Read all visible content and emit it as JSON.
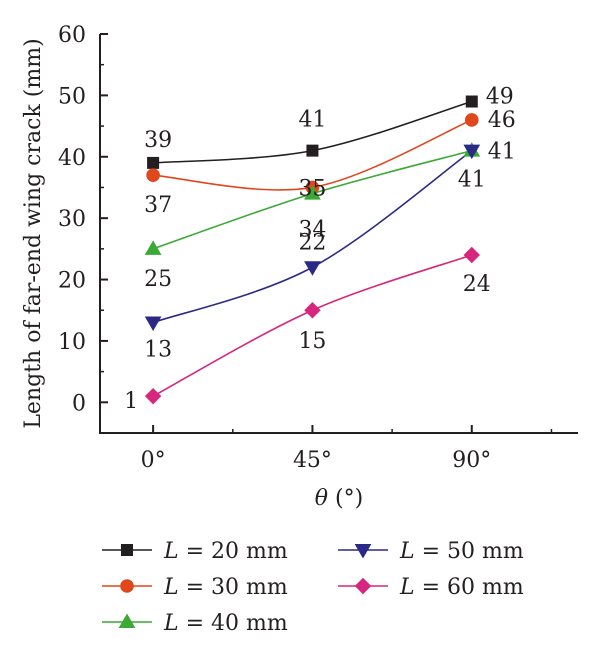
{
  "chart_data": {
    "type": "line",
    "xlabel_var": "θ",
    "xlabel_unit": " (°)",
    "ylabel": "Length of far-end wing crack (mm)",
    "categories": [
      "0°",
      "45°",
      "90°"
    ],
    "x": [
      0,
      45,
      90
    ],
    "xlim": [
      -15,
      120
    ],
    "ylim": [
      -5,
      60
    ],
    "yticks": [
      "0",
      "10",
      "20",
      "30",
      "40",
      "50",
      "60"
    ],
    "grid": false,
    "legend_position": "bottom",
    "series": [
      {
        "name": "L = 20 mm",
        "legend_var": "L",
        "legend_rest": " = 20 mm",
        "values": [
          39,
          41,
          49
        ],
        "labels": [
          "39",
          "41",
          "49"
        ],
        "color": "#231f20",
        "marker": "square"
      },
      {
        "name": "L = 30 mm",
        "legend_var": "L",
        "legend_rest": " = 30 mm",
        "values": [
          37,
          35,
          46
        ],
        "labels": [
          "37",
          "35",
          "46"
        ],
        "color": "#e0471b",
        "marker": "circle"
      },
      {
        "name": "L = 40 mm",
        "legend_var": "L",
        "legend_rest": " = 40 mm",
        "values": [
          25,
          34,
          41
        ],
        "labels": [
          "25",
          "34",
          "41"
        ],
        "color": "#3aa935",
        "marker": "triangle-up"
      },
      {
        "name": "L = 50 mm",
        "legend_var": "L",
        "legend_rest": " = 50 mm",
        "values": [
          13,
          22,
          41
        ],
        "labels": [
          "13",
          "22",
          "41"
        ],
        "color": "#2b2a86",
        "marker": "triangle-down"
      },
      {
        "name": "L = 60 mm",
        "legend_var": "L",
        "legend_rest": " = 60 mm",
        "values": [
          1,
          15,
          24
        ],
        "labels": [
          "1",
          "15",
          "24"
        ],
        "color": "#d6267d",
        "marker": "diamond"
      }
    ]
  }
}
